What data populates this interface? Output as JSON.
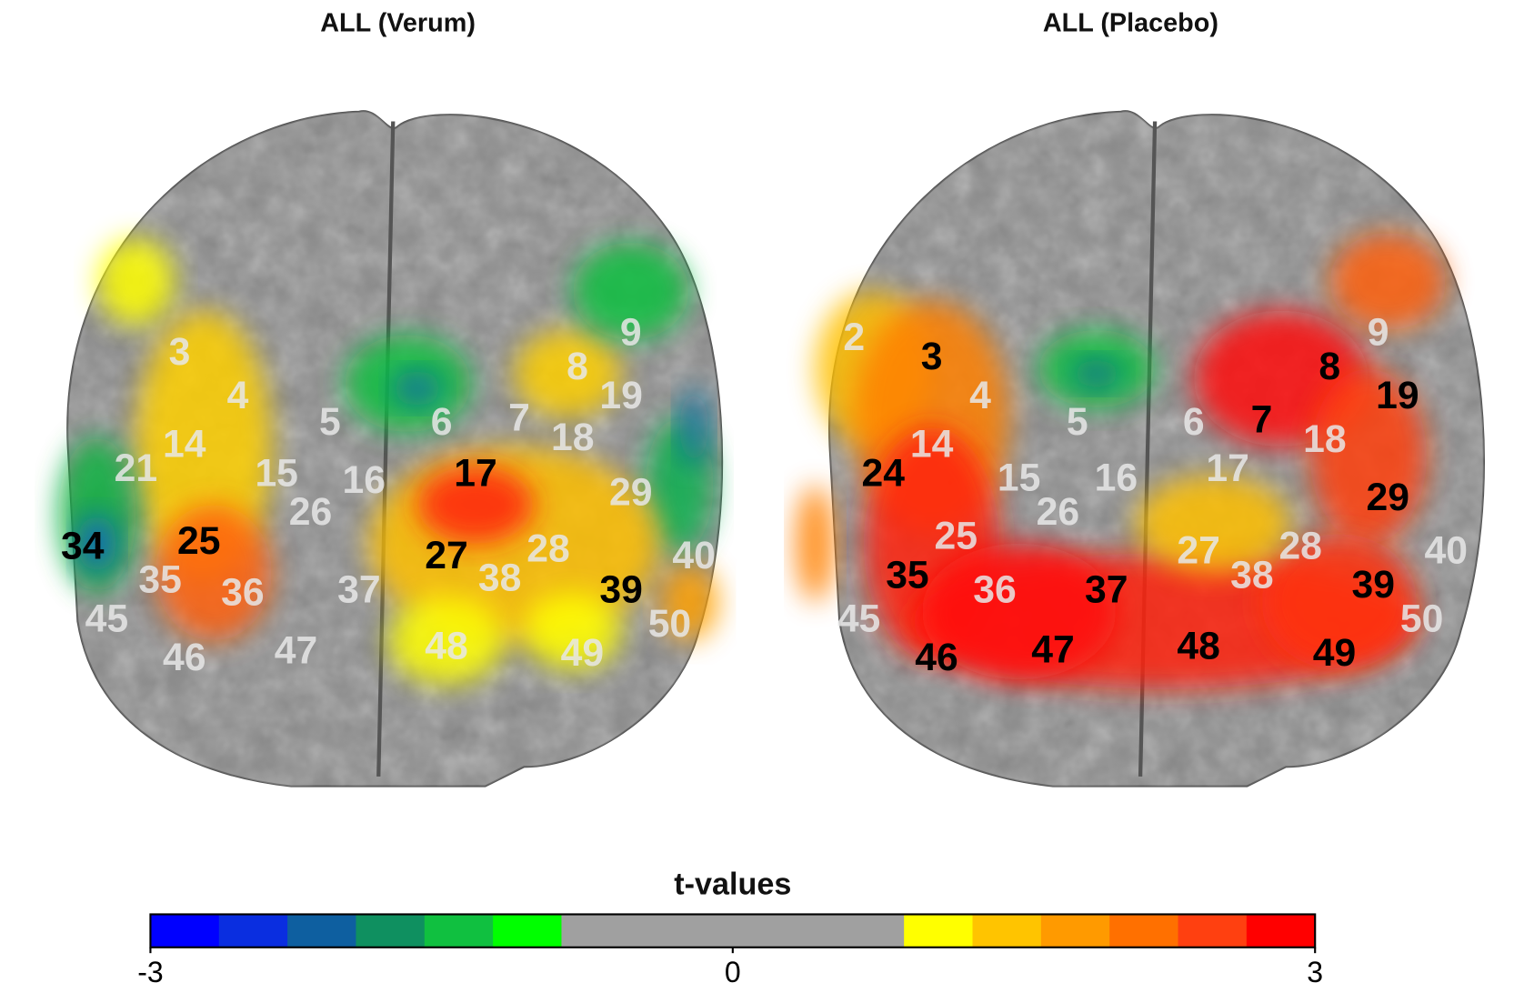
{
  "panels": [
    {
      "title": "ALL  (Verum)",
      "labels": [
        {
          "text": "3",
          "color": "white"
        },
        {
          "text": "4",
          "color": "white"
        },
        {
          "text": "14",
          "color": "white"
        },
        {
          "text": "21",
          "color": "white"
        },
        {
          "text": "15",
          "color": "white"
        },
        {
          "text": "26",
          "color": "white"
        },
        {
          "text": "5",
          "color": "white"
        },
        {
          "text": "6",
          "color": "white"
        },
        {
          "text": "16",
          "color": "white"
        },
        {
          "text": "7",
          "color": "white"
        },
        {
          "text": "8",
          "color": "white"
        },
        {
          "text": "18",
          "color": "white"
        },
        {
          "text": "19",
          "color": "white"
        },
        {
          "text": "9",
          "color": "white"
        },
        {
          "text": "29",
          "color": "white"
        },
        {
          "text": "28",
          "color": "white"
        },
        {
          "text": "38",
          "color": "white"
        },
        {
          "text": "37",
          "color": "white"
        },
        {
          "text": "36",
          "color": "white"
        },
        {
          "text": "35",
          "color": "white"
        },
        {
          "text": "46",
          "color": "white"
        },
        {
          "text": "47",
          "color": "white"
        },
        {
          "text": "48",
          "color": "white"
        },
        {
          "text": "49",
          "color": "white"
        },
        {
          "text": "45",
          "color": "white"
        },
        {
          "text": "50",
          "color": "white"
        },
        {
          "text": "40",
          "color": "white"
        },
        {
          "text": "17",
          "color": "black"
        },
        {
          "text": "27",
          "color": "black"
        },
        {
          "text": "25",
          "color": "black"
        },
        {
          "text": "39",
          "color": "black"
        },
        {
          "text": "34",
          "color": "black"
        }
      ]
    },
    {
      "title": "ALL (Placebo)",
      "labels": [
        {
          "text": "2",
          "color": "white"
        },
        {
          "text": "4",
          "color": "white"
        },
        {
          "text": "14",
          "color": "white"
        },
        {
          "text": "15",
          "color": "white"
        },
        {
          "text": "26",
          "color": "white"
        },
        {
          "text": "25",
          "color": "white"
        },
        {
          "text": "5",
          "color": "white"
        },
        {
          "text": "6",
          "color": "white"
        },
        {
          "text": "16",
          "color": "white"
        },
        {
          "text": "17",
          "color": "white"
        },
        {
          "text": "18",
          "color": "white"
        },
        {
          "text": "27",
          "color": "white"
        },
        {
          "text": "38",
          "color": "white"
        },
        {
          "text": "28",
          "color": "white"
        },
        {
          "text": "36",
          "color": "white"
        },
        {
          "text": "45",
          "color": "white"
        },
        {
          "text": "50",
          "color": "white"
        },
        {
          "text": "9",
          "color": "white"
        },
        {
          "text": "40",
          "color": "white"
        },
        {
          "text": "3",
          "color": "black"
        },
        {
          "text": "24",
          "color": "black"
        },
        {
          "text": "35",
          "color": "black"
        },
        {
          "text": "46",
          "color": "black"
        },
        {
          "text": "47",
          "color": "black"
        },
        {
          "text": "37",
          "color": "black"
        },
        {
          "text": "48",
          "color": "black"
        },
        {
          "text": "49",
          "color": "black"
        },
        {
          "text": "39",
          "color": "black"
        },
        {
          "text": "29",
          "color": "black"
        },
        {
          "text": "7",
          "color": "black"
        },
        {
          "text": "8",
          "color": "black"
        },
        {
          "text": "19",
          "color": "black"
        }
      ]
    }
  ],
  "colorbar": {
    "title": "t-values",
    "colors": [
      "#0000ff",
      "#0a2ee0",
      "#0e5fa0",
      "#0f9060",
      "#10c040",
      "#00ff00",
      "#a0a0a0",
      "#a0a0a0",
      "#a0a0a0",
      "#a0a0a0",
      "#a0a0a0",
      "#ffff00",
      "#ffc400",
      "#ff9a00",
      "#ff7000",
      "#ff4010",
      "#ff0000"
    ],
    "clim": [
      -3,
      3
    ],
    "ticks": [
      -3,
      0,
      3
    ]
  }
}
